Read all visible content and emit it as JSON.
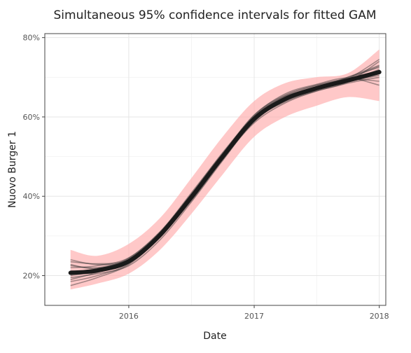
{
  "chart_data": {
    "type": "line",
    "title": "Simultaneous 95% confidence intervals for fitted GAM",
    "xlabel": "Date",
    "ylabel": "Nuovo Burger 1",
    "x_ticks": [
      "2016",
      "2017",
      "2018"
    ],
    "y_ticks": [
      "20%",
      "40%",
      "60%",
      "80%"
    ],
    "xlim": [
      "2015-05-01",
      "2018-01-20"
    ],
    "ylim": [
      0.125,
      0.81
    ],
    "grid": true,
    "legend": "none",
    "colors": {
      "band": "#ffaaaa",
      "fit": "#1a1a1a",
      "draws": "#333333"
    },
    "x": [
      "2015-07-15",
      "2015-10-01",
      "2016-01-01",
      "2016-04-01",
      "2016-07-01",
      "2016-10-01",
      "2017-01-01",
      "2017-04-01",
      "2017-07-01",
      "2017-10-01",
      "2018-01-01"
    ],
    "series": [
      {
        "role": "band_lower",
        "values": [
          0.165,
          0.18,
          0.205,
          0.265,
          0.355,
          0.455,
          0.55,
          0.6,
          0.628,
          0.65,
          0.64
        ]
      },
      {
        "role": "band_upper",
        "values": [
          0.265,
          0.25,
          0.28,
          0.345,
          0.445,
          0.55,
          0.64,
          0.685,
          0.7,
          0.71,
          0.77
        ]
      },
      {
        "role": "fit",
        "values": [
          0.207,
          0.213,
          0.236,
          0.302,
          0.397,
          0.5,
          0.595,
          0.645,
          0.672,
          0.692,
          0.713
        ]
      },
      {
        "role": "draw",
        "values": [
          0.195,
          0.205,
          0.225,
          0.29,
          0.385,
          0.49,
          0.59,
          0.64,
          0.665,
          0.685,
          0.7
        ]
      },
      {
        "role": "draw",
        "values": [
          0.22,
          0.225,
          0.245,
          0.31,
          0.405,
          0.51,
          0.6,
          0.648,
          0.675,
          0.7,
          0.725
        ]
      },
      {
        "role": "draw",
        "values": [
          0.185,
          0.2,
          0.23,
          0.3,
          0.395,
          0.495,
          0.585,
          0.635,
          0.665,
          0.688,
          0.74
        ]
      },
      {
        "role": "draw",
        "values": [
          0.235,
          0.23,
          0.24,
          0.305,
          0.4,
          0.505,
          0.605,
          0.655,
          0.68,
          0.695,
          0.69
        ]
      },
      {
        "role": "draw",
        "values": [
          0.205,
          0.215,
          0.238,
          0.3,
          0.39,
          0.495,
          0.598,
          0.65,
          0.676,
          0.694,
          0.715
        ]
      },
      {
        "role": "draw",
        "values": [
          0.175,
          0.195,
          0.228,
          0.298,
          0.4,
          0.502,
          0.592,
          0.638,
          0.668,
          0.7,
          0.73
        ]
      },
      {
        "role": "draw",
        "values": [
          0.225,
          0.22,
          0.242,
          0.305,
          0.398,
          0.498,
          0.6,
          0.652,
          0.67,
          0.688,
          0.705
        ]
      },
      {
        "role": "draw",
        "values": [
          0.212,
          0.21,
          0.232,
          0.296,
          0.392,
          0.496,
          0.594,
          0.646,
          0.674,
          0.69,
          0.72
        ]
      },
      {
        "role": "draw",
        "values": [
          0.24,
          0.228,
          0.238,
          0.308,
          0.408,
          0.508,
          0.604,
          0.658,
          0.682,
          0.698,
          0.68
        ]
      },
      {
        "role": "draw",
        "values": [
          0.19,
          0.208,
          0.234,
          0.299,
          0.388,
          0.492,
          0.588,
          0.642,
          0.67,
          0.696,
          0.745
        ]
      },
      {
        "role": "draw",
        "values": [
          0.2,
          0.212,
          0.236,
          0.303,
          0.402,
          0.504,
          0.596,
          0.644,
          0.671,
          0.691,
          0.71
        ]
      },
      {
        "role": "draw",
        "values": [
          0.228,
          0.218,
          0.244,
          0.31,
          0.404,
          0.5,
          0.602,
          0.653,
          0.679,
          0.697,
          0.728
        ]
      }
    ]
  }
}
